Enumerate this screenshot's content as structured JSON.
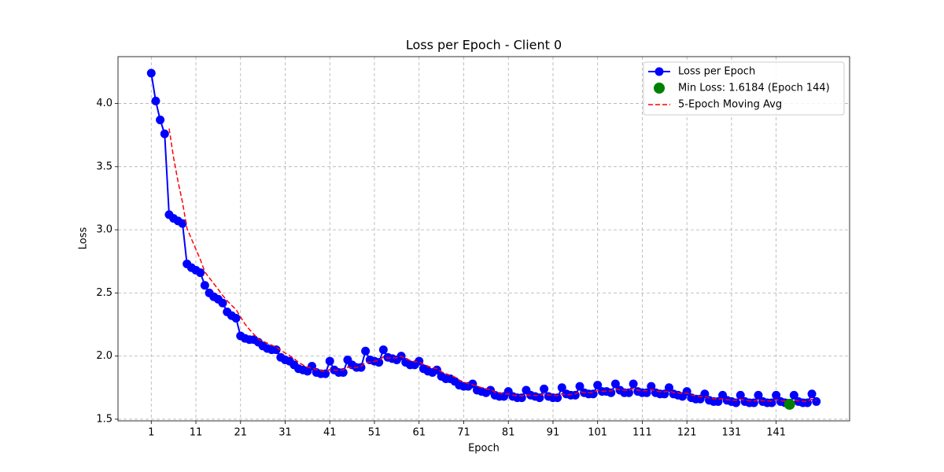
{
  "chart_data": {
    "type": "line",
    "title": "Loss per Epoch - Client 0",
    "xlabel": "Epoch",
    "ylabel": "Loss",
    "x": [
      1,
      2,
      3,
      4,
      5,
      6,
      7,
      8,
      9,
      10,
      11,
      12,
      13,
      14,
      15,
      16,
      17,
      18,
      19,
      20,
      21,
      22,
      23,
      24,
      25,
      26,
      27,
      28,
      29,
      30,
      31,
      32,
      33,
      34,
      35,
      36,
      37,
      38,
      39,
      40,
      41,
      42,
      43,
      44,
      45,
      46,
      47,
      48,
      49,
      50,
      51,
      52,
      53,
      54,
      55,
      56,
      57,
      58,
      59,
      60,
      61,
      62,
      63,
      64,
      65,
      66,
      67,
      68,
      69,
      70,
      71,
      72,
      73,
      74,
      75,
      76,
      77,
      78,
      79,
      80,
      81,
      82,
      83,
      84,
      85,
      86,
      87,
      88,
      89,
      90,
      91,
      92,
      93,
      94,
      95,
      96,
      97,
      98,
      99,
      100,
      101,
      102,
      103,
      104,
      105,
      106,
      107,
      108,
      109,
      110,
      111,
      112,
      113,
      114,
      115,
      116,
      117,
      118,
      119,
      120,
      121,
      122,
      123,
      124,
      125,
      126,
      127,
      128,
      129,
      130,
      131,
      132,
      133,
      134,
      135,
      136,
      137,
      138,
      139,
      140,
      141,
      142,
      143,
      144,
      145,
      146,
      147,
      148,
      149,
      150
    ],
    "series": [
      {
        "name": "Loss per Epoch",
        "color": "#0000ff",
        "style": "line-marker",
        "values": [
          4.24,
          4.02,
          3.87,
          3.76,
          3.12,
          3.09,
          3.07,
          3.05,
          2.73,
          2.7,
          2.68,
          2.66,
          2.56,
          2.5,
          2.47,
          2.45,
          2.42,
          2.35,
          2.32,
          2.3,
          2.16,
          2.14,
          2.13,
          2.13,
          2.11,
          2.08,
          2.06,
          2.05,
          2.05,
          1.99,
          1.97,
          1.96,
          1.93,
          1.9,
          1.89,
          1.88,
          1.92,
          1.87,
          1.86,
          1.86,
          1.96,
          1.89,
          1.87,
          1.87,
          1.97,
          1.93,
          1.91,
          1.91,
          2.04,
          1.97,
          1.96,
          1.95,
          2.05,
          1.99,
          1.98,
          1.97,
          2.0,
          1.95,
          1.93,
          1.93,
          1.96,
          1.9,
          1.88,
          1.87,
          1.89,
          1.84,
          1.82,
          1.82,
          1.8,
          1.77,
          1.76,
          1.76,
          1.78,
          1.73,
          1.72,
          1.71,
          1.73,
          1.69,
          1.68,
          1.68,
          1.72,
          1.68,
          1.67,
          1.67,
          1.73,
          1.69,
          1.68,
          1.67,
          1.74,
          1.68,
          1.67,
          1.67,
          1.75,
          1.7,
          1.69,
          1.69,
          1.76,
          1.71,
          1.7,
          1.7,
          1.77,
          1.72,
          1.72,
          1.71,
          1.78,
          1.73,
          1.71,
          1.71,
          1.78,
          1.72,
          1.71,
          1.71,
          1.76,
          1.71,
          1.7,
          1.7,
          1.75,
          1.7,
          1.69,
          1.68,
          1.72,
          1.67,
          1.66,
          1.66,
          1.7,
          1.65,
          1.64,
          1.64,
          1.69,
          1.65,
          1.64,
          1.63,
          1.69,
          1.64,
          1.63,
          1.63,
          1.69,
          1.64,
          1.63,
          1.63,
          1.69,
          1.64,
          1.63,
          1.6184,
          1.69,
          1.64,
          1.63,
          1.63,
          1.7,
          1.64
        ]
      },
      {
        "name": "Min Loss: 1.6184 (Epoch 144)",
        "color": "#008000",
        "style": "point",
        "x": [
          144
        ],
        "values": [
          1.6184
        ]
      },
      {
        "name": "5-Epoch Moving Avg",
        "color": "#ff0000",
        "style": "dashed",
        "values": [
          null,
          null,
          null,
          null,
          3.802,
          3.572,
          3.382,
          3.218,
          3.012,
          2.928,
          2.846,
          2.764,
          2.666,
          2.62,
          2.574,
          2.528,
          2.48,
          2.438,
          2.402,
          2.368,
          2.31,
          2.254,
          2.21,
          2.172,
          2.134,
          2.118,
          2.102,
          2.086,
          2.07,
          2.046,
          2.024,
          2.004,
          1.98,
          1.95,
          1.93,
          1.912,
          1.904,
          1.892,
          1.884,
          1.878,
          1.894,
          1.888,
          1.888,
          1.89,
          1.912,
          1.906,
          1.91,
          1.918,
          1.952,
          1.952,
          1.958,
          1.966,
          1.994,
          1.984,
          1.986,
          1.988,
          1.998,
          1.978,
          1.966,
          1.956,
          1.954,
          1.934,
          1.92,
          1.908,
          1.9,
          1.876,
          1.86,
          1.848,
          1.834,
          1.81,
          1.794,
          1.782,
          1.774,
          1.76,
          1.75,
          1.74,
          1.734,
          1.716,
          1.706,
          1.698,
          1.7,
          1.69,
          1.686,
          1.684,
          1.694,
          1.688,
          1.688,
          1.688,
          1.702,
          1.692,
          1.688,
          1.686,
          1.702,
          1.694,
          1.696,
          1.7,
          1.718,
          1.71,
          1.71,
          1.712,
          1.728,
          1.72,
          1.722,
          1.724,
          1.74,
          1.732,
          1.73,
          1.728,
          1.742,
          1.73,
          1.726,
          1.726,
          1.736,
          1.722,
          1.718,
          1.716,
          1.724,
          1.712,
          1.708,
          1.704,
          1.708,
          1.692,
          1.684,
          1.678,
          1.682,
          1.668,
          1.662,
          1.658,
          1.664,
          1.654,
          1.652,
          1.65,
          1.66,
          1.65,
          1.646,
          1.644,
          1.656,
          1.646,
          1.644,
          1.644,
          1.656,
          1.646,
          1.644,
          1.6417,
          1.6537,
          1.6437,
          1.6417,
          1.6417,
          1.658,
          1.648
        ]
      }
    ],
    "xlim": [
      -6.45,
      157.45
    ],
    "ylim": [
      1.487,
      4.371
    ],
    "xticks": [
      1,
      11,
      21,
      31,
      41,
      51,
      61,
      71,
      81,
      91,
      101,
      111,
      121,
      131,
      141
    ],
    "yticks": [
      1.5,
      {
        "value": 2,
        "label": "2.0"
      },
      2.5,
      {
        "value": 3,
        "label": "3.0"
      },
      3.5,
      {
        "value": 4,
        "label": "4.0"
      }
    ],
    "grid": true,
    "legend": "upper right"
  }
}
